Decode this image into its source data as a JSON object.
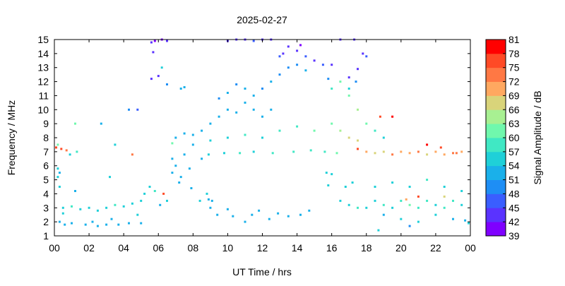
{
  "chart_data": {
    "type": "heatmap",
    "title": "2025-02-27",
    "xlabel": "UT Time / hrs",
    "ylabel": "Frequency / MHz",
    "xlim": [
      0,
      24
    ],
    "ylim": [
      1,
      15
    ],
    "x_ticks": [
      "00",
      "02",
      "04",
      "06",
      "08",
      "10",
      "12",
      "14",
      "16",
      "18",
      "20",
      "22",
      "00"
    ],
    "y_ticks": [
      "1",
      "2",
      "3",
      "4",
      "5",
      "6",
      "7",
      "8",
      "9",
      "10",
      "11",
      "12",
      "13",
      "14",
      "15"
    ],
    "colorbar": {
      "label": "Signal Amplitude / dB",
      "range": [
        39,
        81
      ],
      "ticks": [
        "39",
        "42",
        "45",
        "48",
        "51",
        "54",
        "57",
        "60",
        "63",
        "66",
        "69",
        "72",
        "75",
        "78",
        "81"
      ],
      "colors": [
        "#7f00ff",
        "#5a33ff",
        "#3a5eff",
        "#1e8ef5",
        "#1ab0ea",
        "#1fd0d8",
        "#40e8c4",
        "#70f8ad",
        "#a8f092",
        "#d9d47a",
        "#ffa860",
        "#ff7844",
        "#ff4a26",
        "#ff0000"
      ]
    },
    "points_t_f_db": [
      [
        0.1,
        7.3,
        75
      ],
      [
        0.4,
        7.2,
        77
      ],
      [
        0.7,
        7.1,
        74
      ],
      [
        0.2,
        7.5,
        60
      ],
      [
        1.3,
        7.0,
        57
      ],
      [
        0.9,
        6.8,
        55
      ],
      [
        0.5,
        3.0,
        56
      ],
      [
        0.5,
        2.6,
        54
      ],
      [
        1.0,
        3.1,
        57
      ],
      [
        1.5,
        2.9,
        55
      ],
      [
        2.0,
        3.0,
        56
      ],
      [
        2.5,
        2.8,
        54
      ],
      [
        3.0,
        3.0,
        55
      ],
      [
        3.5,
        3.2,
        57
      ],
      [
        4.0,
        3.1,
        56
      ],
      [
        4.5,
        3.3,
        55
      ],
      [
        5.0,
        3.5,
        56
      ],
      [
        0.3,
        4.5,
        54
      ],
      [
        0.3,
        5.5,
        52
      ],
      [
        1.2,
        4.2,
        53
      ],
      [
        2.2,
        2.0,
        52
      ],
      [
        3.3,
        2.2,
        53
      ],
      [
        4.8,
        2.5,
        54
      ],
      [
        5.2,
        4.0,
        55
      ],
      [
        5.5,
        4.5,
        56
      ],
      [
        5.8,
        4.2,
        58
      ],
      [
        6.3,
        4.0,
        75
      ],
      [
        6.5,
        3.5,
        54
      ],
      [
        6.1,
        3.2,
        53
      ],
      [
        7.0,
        8.0,
        52
      ],
      [
        7.5,
        8.3,
        53
      ],
      [
        8.0,
        8.2,
        52
      ],
      [
        8.5,
        8.5,
        51
      ],
      [
        9.0,
        9.0,
        52
      ],
      [
        9.5,
        9.5,
        53
      ],
      [
        10.0,
        10.0,
        52
      ],
      [
        10.5,
        9.8,
        51
      ],
      [
        11.0,
        10.5,
        52
      ],
      [
        11.5,
        10.0,
        53
      ],
      [
        12.0,
        9.5,
        51
      ],
      [
        12.5,
        10.0,
        52
      ],
      [
        9.5,
        10.8,
        50
      ],
      [
        10.0,
        11.2,
        51
      ],
      [
        10.5,
        11.8,
        50
      ],
      [
        11.0,
        11.5,
        51
      ],
      [
        11.5,
        11.0,
        52
      ],
      [
        12.0,
        11.5,
        50
      ],
      [
        12.5,
        12.0,
        51
      ],
      [
        13.0,
        12.5,
        50
      ],
      [
        13.5,
        13.0,
        49
      ],
      [
        14.0,
        13.2,
        50
      ],
      [
        14.5,
        12.8,
        51
      ],
      [
        13.0,
        13.8,
        45
      ],
      [
        13.5,
        14.5,
        42
      ],
      [
        14.0,
        14.2,
        44
      ],
      [
        14.5,
        13.8,
        45
      ],
      [
        15.0,
        13.5,
        44
      ],
      [
        15.5,
        13.2,
        46
      ],
      [
        13.2,
        14.0,
        43
      ],
      [
        14.2,
        14.6,
        41
      ],
      [
        8.0,
        7.5,
        52
      ],
      [
        9.0,
        7.8,
        54
      ],
      [
        10.0,
        8.0,
        55
      ],
      [
        11.0,
        8.2,
        57
      ],
      [
        12.0,
        8.0,
        56
      ],
      [
        13.0,
        8.5,
        58
      ],
      [
        14.0,
        8.8,
        59
      ],
      [
        15.0,
        8.5,
        60
      ],
      [
        16.0,
        9.0,
        61
      ],
      [
        16.5,
        8.5,
        64
      ],
      [
        17.0,
        8.0,
        66
      ],
      [
        17.5,
        7.8,
        68
      ],
      [
        16.0,
        11.5,
        58
      ],
      [
        16.5,
        12.0,
        60
      ],
      [
        17.0,
        11.0,
        62
      ],
      [
        17.5,
        10.0,
        63
      ],
      [
        18.0,
        9.0,
        61
      ],
      [
        18.5,
        8.5,
        58
      ],
      [
        19.0,
        8.0,
        56
      ],
      [
        17.5,
        7.2,
        75
      ],
      [
        18.0,
        7.0,
        70
      ],
      [
        18.5,
        6.9,
        66
      ],
      [
        19.0,
        7.0,
        68
      ],
      [
        19.5,
        6.8,
        72
      ],
      [
        20.0,
        7.0,
        70
      ],
      [
        20.5,
        6.9,
        69
      ],
      [
        21.0,
        7.0,
        74
      ],
      [
        21.5,
        6.8,
        66
      ],
      [
        22.0,
        7.0,
        71
      ],
      [
        22.5,
        6.8,
        69
      ],
      [
        23.0,
        6.9,
        72
      ],
      [
        23.5,
        7.0,
        70
      ],
      [
        18.0,
        3.0,
        55
      ],
      [
        18.5,
        3.5,
        56
      ],
      [
        19.0,
        3.2,
        57
      ],
      [
        19.5,
        3.0,
        56
      ],
      [
        20.0,
        3.5,
        58
      ],
      [
        20.5,
        3.2,
        60
      ],
      [
        21.0,
        3.0,
        57
      ],
      [
        21.5,
        3.5,
        59
      ],
      [
        22.0,
        3.2,
        56
      ],
      [
        22.5,
        3.0,
        58
      ],
      [
        23.0,
        3.5,
        57
      ],
      [
        23.5,
        3.2,
        56
      ],
      [
        18.5,
        4.5,
        54
      ],
      [
        19.5,
        4.8,
        55
      ],
      [
        20.5,
        4.5,
        56
      ],
      [
        21.5,
        5.0,
        57
      ],
      [
        22.5,
        4.5,
        56
      ],
      [
        23.5,
        4.2,
        55
      ],
      [
        19.0,
        2.5,
        53
      ],
      [
        20.0,
        2.2,
        54
      ],
      [
        21.0,
        2.0,
        55
      ],
      [
        22.0,
        2.5,
        54
      ],
      [
        23.0,
        2.2,
        53
      ],
      [
        16.5,
        3.5,
        55
      ],
      [
        17.0,
        3.2,
        56
      ],
      [
        17.5,
        3.0,
        57
      ],
      [
        16.8,
        4.5,
        54
      ],
      [
        17.2,
        4.8,
        55
      ],
      [
        21.0,
        3.8,
        75
      ],
      [
        22.5,
        3.8,
        66
      ],
      [
        20.3,
        3.6,
        70
      ],
      [
        18.8,
        9.5,
        75
      ],
      [
        19.5,
        9.5,
        78
      ],
      [
        21.5,
        7.5,
        78
      ],
      [
        22.3,
        7.3,
        75
      ],
      [
        23.2,
        6.9,
        72
      ],
      [
        4.5,
        6.8,
        74
      ],
      [
        3.5,
        7.5,
        56
      ],
      [
        2.7,
        9.0,
        53
      ],
      [
        1.2,
        9.0,
        60
      ],
      [
        4.3,
        10.0,
        48
      ],
      [
        4.8,
        10.0,
        47
      ],
      [
        5.6,
        14.8,
        42
      ],
      [
        5.8,
        14.9,
        41
      ],
      [
        6.2,
        15.0,
        40
      ],
      [
        6.5,
        14.9,
        42
      ],
      [
        5.7,
        14.1,
        44
      ],
      [
        5.6,
        12.2,
        42
      ],
      [
        6.0,
        12.4,
        42
      ],
      [
        6.2,
        13.0,
        55
      ],
      [
        6.5,
        11.8,
        50
      ],
      [
        7.3,
        11.5,
        52
      ],
      [
        7.5,
        11.6,
        52
      ],
      [
        10.5,
        15.0,
        44
      ],
      [
        11.0,
        15.0,
        43
      ],
      [
        11.5,
        14.9,
        45
      ],
      [
        12.0,
        15.0,
        44
      ],
      [
        12.5,
        15.0,
        42
      ],
      [
        10.0,
        14.9,
        43
      ],
      [
        16.5,
        15.0,
        42
      ],
      [
        17.3,
        15.0,
        44
      ],
      [
        17.8,
        14.0,
        44
      ],
      [
        18.0,
        13.8,
        45
      ],
      [
        17.5,
        12.9,
        44
      ],
      [
        17.0,
        12.3,
        43
      ],
      [
        16.0,
        13.2,
        44
      ],
      [
        15.8,
        12.2,
        50
      ],
      [
        17.0,
        11.5,
        54
      ],
      [
        17.4,
        12.0,
        50
      ],
      [
        6.8,
        7.6,
        60
      ],
      [
        6.8,
        6.5,
        52
      ],
      [
        7.5,
        6.8,
        51
      ],
      [
        8.5,
        6.5,
        53
      ],
      [
        7.0,
        6.0,
        52
      ],
      [
        7.8,
        5.8,
        51
      ],
      [
        6.8,
        5.5,
        53
      ],
      [
        7.3,
        5.2,
        52
      ],
      [
        7.2,
        4.8,
        51
      ],
      [
        7.9,
        4.4,
        52
      ],
      [
        8.8,
        4.0,
        54
      ],
      [
        8.9,
        3.6,
        52
      ],
      [
        9.1,
        3.5,
        51
      ],
      [
        8.4,
        3.5,
        54
      ],
      [
        9.0,
        3.0,
        52
      ],
      [
        9.4,
        2.5,
        52
      ],
      [
        10.0,
        2.9,
        52
      ],
      [
        10.3,
        2.4,
        51
      ],
      [
        11.0,
        2.0,
        52
      ],
      [
        11.4,
        2.5,
        53
      ],
      [
        11.8,
        2.8,
        52
      ],
      [
        12.4,
        2.2,
        53
      ],
      [
        12.9,
        2.6,
        52
      ],
      [
        13.5,
        2.4,
        51
      ],
      [
        14.2,
        2.5,
        52
      ],
      [
        14.7,
        2.8,
        52
      ],
      [
        15.7,
        5.5,
        54
      ],
      [
        16.0,
        5.4,
        55
      ],
      [
        15.8,
        4.6,
        54
      ],
      [
        23.7,
        2.1,
        52
      ],
      [
        23.9,
        1.9,
        54
      ],
      [
        20.5,
        1.7,
        50
      ],
      [
        18.7,
        1.4,
        56
      ],
      [
        0.2,
        5.8,
        55
      ],
      [
        0.2,
        5.2,
        54
      ],
      [
        0.3,
        2.0,
        53
      ],
      [
        0.6,
        1.8,
        52
      ],
      [
        1.0,
        1.9,
        53
      ],
      [
        1.8,
        1.8,
        52
      ],
      [
        2.5,
        1.7,
        52
      ],
      [
        3.0,
        1.8,
        53
      ],
      [
        3.7,
        1.8,
        52
      ],
      [
        4.3,
        1.9,
        53
      ],
      [
        5.0,
        1.9,
        52
      ],
      [
        3.2,
        5.2,
        54
      ],
      [
        8.9,
        6.8,
        55
      ],
      [
        9.8,
        6.9,
        56
      ],
      [
        10.7,
        6.9,
        57
      ],
      [
        11.5,
        7.0,
        56
      ],
      [
        12.6,
        6.9,
        58
      ],
      [
        13.8,
        7.0,
        57
      ],
      [
        14.8,
        7.1,
        58
      ],
      [
        15.6,
        7.0,
        59
      ],
      [
        16.3,
        6.9,
        60
      ]
    ]
  }
}
